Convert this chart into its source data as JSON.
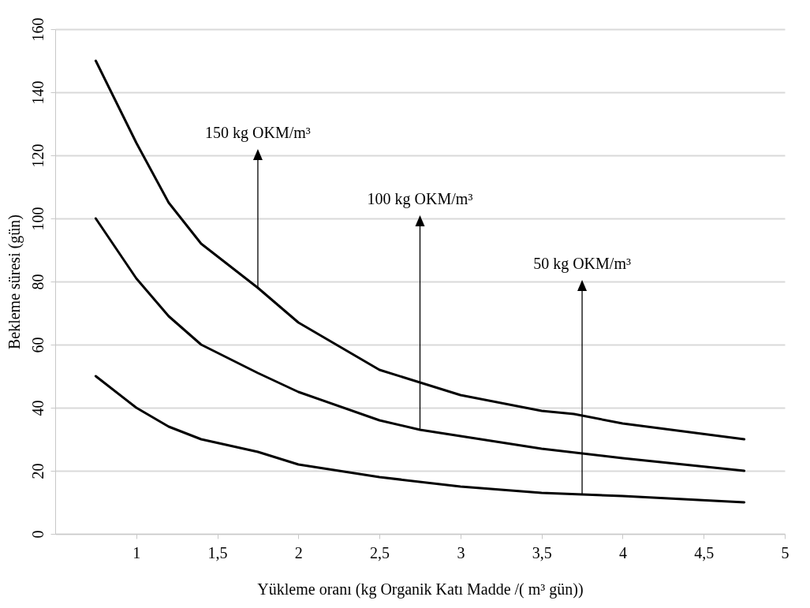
{
  "chart_data": {
    "type": "line",
    "xlabel": "Yükleme oranı (kg Organik Katı Madde /( m³ gün))",
    "ylabel": "Bekleme süresi (gün)",
    "xlim": [
      0.5,
      5
    ],
    "ylim": [
      0,
      160
    ],
    "xticks": [
      1,
      {
        "value": 1.5,
        "label": "1,5"
      },
      2,
      {
        "value": 2.5,
        "label": "2,5"
      },
      3,
      {
        "value": 3.5,
        "label": "3,5"
      },
      4,
      {
        "value": 4.5,
        "label": "4,5"
      },
      5
    ],
    "yticks": [
      0,
      20,
      40,
      60,
      80,
      100,
      120,
      140,
      160
    ],
    "grid": "y",
    "line_style": "solid",
    "series": [
      {
        "color": "#000000",
        "x": [
          0.75,
          1,
          1.2,
          1.4,
          1.75,
          2,
          2.5,
          3,
          3.5,
          3.7,
          4,
          4.75
        ],
        "values": [
          150,
          124,
          105,
          92,
          78,
          67,
          52,
          44,
          39,
          38,
          35,
          30
        ]
      },
      {
        "color": "#000000",
        "x": [
          0.75,
          1,
          1.2,
          1.4,
          1.75,
          2,
          2.5,
          2.75,
          3,
          3.5,
          4,
          4.75
        ],
        "values": [
          100,
          81,
          69,
          60,
          51,
          45,
          36,
          33,
          31,
          27,
          24,
          20
        ]
      },
      {
        "color": "#000000",
        "x": [
          0.75,
          1,
          1.2,
          1.4,
          1.75,
          2,
          2.5,
          3,
          3.5,
          3.75,
          4,
          4.75
        ],
        "values": [
          50,
          40,
          34,
          30,
          26,
          22,
          18,
          15,
          13,
          12.5,
          12,
          10
        ]
      }
    ],
    "annotations": [
      {
        "text": "150 kg OKM/m³",
        "x": 1.75,
        "y": 78
      },
      {
        "text": "100 kg OKM/m³",
        "x": 2.75,
        "y": 33
      },
      {
        "text": "50 kg OKM/m³",
        "x": 3.75,
        "y": 12.5
      }
    ]
  }
}
